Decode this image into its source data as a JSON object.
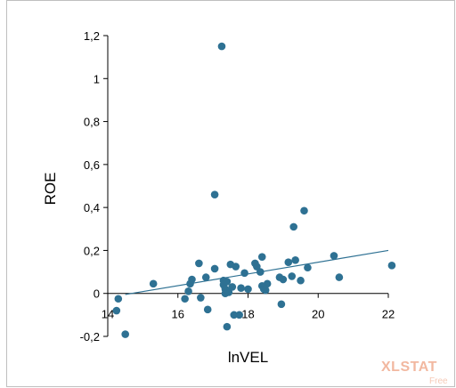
{
  "chart_data": {
    "type": "scatter",
    "title": "",
    "xlabel": "lnVEL",
    "ylabel": "ROE",
    "xlim": [
      14,
      22
    ],
    "ylim": [
      -0.2,
      1.2
    ],
    "xticks": [
      14,
      16,
      18,
      20,
      22
    ],
    "yticks": [
      -0.2,
      0,
      0.2,
      0.4,
      0.6,
      0.8,
      1,
      1.2
    ],
    "xtick_labels": [
      "14",
      "16",
      "18",
      "20",
      "22"
    ],
    "ytick_labels": [
      "-0,2",
      "0",
      "0,2",
      "0,4",
      "0,6",
      "0,8",
      "1",
      "1,2"
    ],
    "grid": false,
    "legend": "none",
    "point_color": "#2e7193",
    "line_color": "#2e7193",
    "points": [
      {
        "x": 14.3,
        "y": -0.025
      },
      {
        "x": 14.25,
        "y": -0.08
      },
      {
        "x": 14.5,
        "y": -0.19
      },
      {
        "x": 15.3,
        "y": 0.045
      },
      {
        "x": 16.2,
        "y": -0.025
      },
      {
        "x": 16.3,
        "y": 0.01
      },
      {
        "x": 16.35,
        "y": 0.045
      },
      {
        "x": 16.4,
        "y": 0.065
      },
      {
        "x": 16.6,
        "y": 0.14
      },
      {
        "x": 16.65,
        "y": -0.02
      },
      {
        "x": 16.8,
        "y": 0.075
      },
      {
        "x": 16.85,
        "y": -0.075
      },
      {
        "x": 17.05,
        "y": 0.115
      },
      {
        "x": 17.05,
        "y": 0.46
      },
      {
        "x": 17.25,
        "y": 1.15
      },
      {
        "x": 17.3,
        "y": 0.06
      },
      {
        "x": 17.3,
        "y": 0.04
      },
      {
        "x": 17.35,
        "y": 0.0
      },
      {
        "x": 17.35,
        "y": 0.02
      },
      {
        "x": 17.4,
        "y": 0.055
      },
      {
        "x": 17.4,
        "y": -0.155
      },
      {
        "x": 17.45,
        "y": 0.005
      },
      {
        "x": 17.5,
        "y": 0.135
      },
      {
        "x": 17.55,
        "y": 0.03
      },
      {
        "x": 17.6,
        "y": -0.1
      },
      {
        "x": 17.65,
        "y": 0.125
      },
      {
        "x": 17.75,
        "y": -0.1
      },
      {
        "x": 17.8,
        "y": 0.025
      },
      {
        "x": 17.9,
        "y": 0.095
      },
      {
        "x": 18.0,
        "y": 0.02
      },
      {
        "x": 18.2,
        "y": 0.14
      },
      {
        "x": 18.25,
        "y": 0.125
      },
      {
        "x": 18.35,
        "y": 0.1
      },
      {
        "x": 18.4,
        "y": 0.035
      },
      {
        "x": 18.4,
        "y": 0.17
      },
      {
        "x": 18.45,
        "y": 0.02
      },
      {
        "x": 18.5,
        "y": 0.015
      },
      {
        "x": 18.55,
        "y": 0.045
      },
      {
        "x": 18.9,
        "y": 0.075
      },
      {
        "x": 18.95,
        "y": -0.05
      },
      {
        "x": 19.0,
        "y": 0.065
      },
      {
        "x": 19.15,
        "y": 0.145
      },
      {
        "x": 19.25,
        "y": 0.08
      },
      {
        "x": 19.3,
        "y": 0.31
      },
      {
        "x": 19.35,
        "y": 0.155
      },
      {
        "x": 19.5,
        "y": 0.06
      },
      {
        "x": 19.6,
        "y": 0.385
      },
      {
        "x": 19.7,
        "y": 0.12
      },
      {
        "x": 20.45,
        "y": 0.175
      },
      {
        "x": 20.6,
        "y": 0.075
      },
      {
        "x": 22.1,
        "y": 0.13
      }
    ],
    "trendline": {
      "x1": 14.5,
      "y1": -0.005,
      "x2": 22.0,
      "y2": 0.2
    }
  },
  "watermark": {
    "text": "XLSTAT",
    "sub": "Free"
  }
}
